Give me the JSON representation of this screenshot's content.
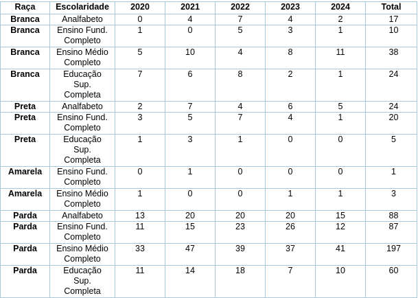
{
  "table": {
    "headers": [
      "Raça",
      "Escolaridade",
      "2020",
      "2021",
      "2022",
      "2023",
      "2024",
      "Total"
    ],
    "rows": [
      {
        "raca": "Branca",
        "escolaridade": [
          "Analfabeto"
        ],
        "values": [
          "0",
          "4",
          "7",
          "4",
          "2"
        ],
        "total": "17"
      },
      {
        "raca": "Branca",
        "escolaridade": [
          "Ensino Fund.",
          "Completo"
        ],
        "values": [
          "1",
          "0",
          "5",
          "3",
          "1"
        ],
        "total": "10"
      },
      {
        "raca": "Branca",
        "escolaridade": [
          "Ensino Médio",
          "Completo"
        ],
        "values": [
          "5",
          "10",
          "4",
          "8",
          "11"
        ],
        "total": "38"
      },
      {
        "raca": "Branca",
        "escolaridade": [
          "Educação",
          "Sup.",
          "Completa"
        ],
        "values": [
          "7",
          "6",
          "8",
          "2",
          "1"
        ],
        "total": "24"
      },
      {
        "raca": "Preta",
        "escolaridade": [
          "Analfabeto"
        ],
        "values": [
          "2",
          "7",
          "4",
          "6",
          "5"
        ],
        "total": "24"
      },
      {
        "raca": "Preta",
        "escolaridade": [
          "Ensino Fund.",
          "Completo"
        ],
        "values": [
          "3",
          "5",
          "7",
          "4",
          "1"
        ],
        "total": "20"
      },
      {
        "raca": "Preta",
        "escolaridade": [
          "Educação",
          "Sup.",
          "Completa"
        ],
        "values": [
          "1",
          "3",
          "1",
          "0",
          "0"
        ],
        "total": "5"
      },
      {
        "raca": "Amarela",
        "escolaridade": [
          "Ensino Fund.",
          "Completo"
        ],
        "values": [
          "0",
          "1",
          "0",
          "0",
          "0"
        ],
        "total": "1"
      },
      {
        "raca": "Amarela",
        "escolaridade": [
          "Ensino Médio",
          "Completo"
        ],
        "values": [
          "1",
          "0",
          "0",
          "1",
          "1"
        ],
        "total": "3"
      },
      {
        "raca": "Parda",
        "escolaridade": [
          "Analfabeto"
        ],
        "values": [
          "13",
          "20",
          "20",
          "20",
          "15"
        ],
        "total": "88"
      },
      {
        "raca": "Parda",
        "escolaridade": [
          "Ensino Fund.",
          "Completo"
        ],
        "values": [
          "11",
          "15",
          "23",
          "26",
          "12"
        ],
        "total": "87"
      },
      {
        "raca": "Parda",
        "escolaridade": [
          "Ensino Médio",
          "Completo"
        ],
        "values": [
          "33",
          "47",
          "39",
          "37",
          "41"
        ],
        "total": "197"
      },
      {
        "raca": "Parda",
        "escolaridade": [
          "Educação",
          "Sup.",
          "Completa"
        ],
        "values": [
          "11",
          "14",
          "18",
          "7",
          "10"
        ],
        "total": "60"
      }
    ]
  }
}
